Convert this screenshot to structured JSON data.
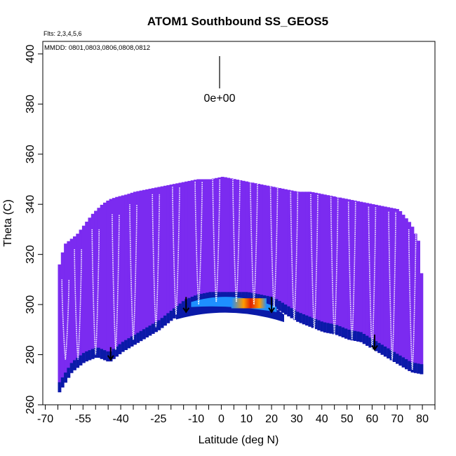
{
  "chart_data": {
    "type": "heatmap",
    "title": "ATOM1 Southbound SS_GEOS5",
    "annotations": {
      "flights": "Flts: 2,3,4,5,6",
      "dates": "MMDD: 0801,0803,0806,0808,0812",
      "legend_value": "0e+00"
    },
    "xlabel": "Latitude (deg N)",
    "ylabel": "Theta (C)",
    "xlim": [
      -71,
      85
    ],
    "ylim": [
      260,
      405
    ],
    "x_ticks_labeled": [
      -70,
      -55,
      -40,
      -25,
      -10,
      0,
      10,
      20,
      30,
      40,
      50,
      60,
      70,
      80
    ],
    "x_ticks_minor": [
      -65,
      -60,
      -50,
      -45,
      -35,
      -30,
      -20,
      -15,
      -5,
      5,
      15,
      25,
      35,
      45,
      55,
      65,
      75,
      85
    ],
    "y_ticks": [
      260,
      280,
      300,
      320,
      340,
      360,
      380,
      400
    ],
    "field_upper_boundary": [
      [
        -65,
        316
      ],
      [
        -63,
        324
      ],
      [
        -58,
        328
      ],
      [
        -55,
        332
      ],
      [
        -52,
        336
      ],
      [
        -48,
        340
      ],
      [
        -45,
        342
      ],
      [
        -42,
        343
      ],
      [
        -38,
        344
      ],
      [
        -35,
        345
      ],
      [
        -30,
        346
      ],
      [
        -25,
        347
      ],
      [
        -20,
        348
      ],
      [
        -15,
        349
      ],
      [
        -10,
        350
      ],
      [
        -5,
        350
      ],
      [
        0,
        351
      ],
      [
        5,
        350
      ],
      [
        10,
        349
      ],
      [
        15,
        348
      ],
      [
        20,
        347
      ],
      [
        25,
        346
      ],
      [
        30,
        345
      ],
      [
        35,
        345
      ],
      [
        40,
        344
      ],
      [
        45,
        343
      ],
      [
        50,
        342
      ],
      [
        55,
        341
      ],
      [
        60,
        340
      ],
      [
        65,
        339
      ],
      [
        70,
        338
      ],
      [
        75,
        332
      ],
      [
        78,
        325
      ],
      [
        80,
        300
      ]
    ],
    "field_lower_boundary": [
      [
        -65,
        265
      ],
      [
        -60,
        273
      ],
      [
        -55,
        277
      ],
      [
        -50,
        279
      ],
      [
        -45,
        277
      ],
      [
        -40,
        281
      ],
      [
        -35,
        284
      ],
      [
        -30,
        287
      ],
      [
        -25,
        290
      ],
      [
        -20,
        294
      ],
      [
        -15,
        298
      ],
      [
        -10,
        300
      ],
      [
        -5,
        301
      ],
      [
        0,
        301
      ],
      [
        5,
        301
      ],
      [
        10,
        301
      ],
      [
        15,
        300
      ],
      [
        20,
        299
      ],
      [
        25,
        296
      ],
      [
        30,
        293
      ],
      [
        35,
        291
      ],
      [
        40,
        289
      ],
      [
        45,
        288
      ],
      [
        50,
        286
      ],
      [
        55,
        285
      ],
      [
        60,
        282
      ],
      [
        65,
        279
      ],
      [
        70,
        276
      ],
      [
        75,
        273
      ],
      [
        80,
        272
      ]
    ],
    "colors": {
      "background_field": "#7b2bf0",
      "low_theta_band": "#0a1aa8",
      "mid_band": "#1e90ff",
      "peak_hot": "#e02000",
      "peak_warm": "#ff9a00",
      "flight_track": "#ffffff"
    },
    "flight_profiles": [
      {
        "lat": -62,
        "top": 310,
        "bottom": 278
      },
      {
        "lat": -57,
        "top": 322,
        "bottom": 278
      },
      {
        "lat": -50,
        "top": 330,
        "bottom": 280
      },
      {
        "lat": -42,
        "top": 336,
        "bottom": 282
      },
      {
        "lat": -35,
        "top": 340,
        "bottom": 286
      },
      {
        "lat": -26,
        "top": 344,
        "bottom": 291
      },
      {
        "lat": -18,
        "top": 347,
        "bottom": 296
      },
      {
        "lat": -9,
        "top": 349,
        "bottom": 300
      },
      {
        "lat": -2,
        "top": 350,
        "bottom": 301
      },
      {
        "lat": 6,
        "top": 350,
        "bottom": 301
      },
      {
        "lat": 13,
        "top": 349,
        "bottom": 300
      },
      {
        "lat": 21,
        "top": 347,
        "bottom": 299
      },
      {
        "lat": 29,
        "top": 345,
        "bottom": 294
      },
      {
        "lat": 37,
        "top": 344,
        "bottom": 290
      },
      {
        "lat": 45,
        "top": 343,
        "bottom": 288
      },
      {
        "lat": 52,
        "top": 341,
        "bottom": 286
      },
      {
        "lat": 60,
        "top": 339,
        "bottom": 282
      },
      {
        "lat": 68,
        "top": 337,
        "bottom": 278
      },
      {
        "lat": 76,
        "top": 330,
        "bottom": 274
      }
    ],
    "arrows": [
      {
        "lat": -44,
        "theta_from": 283,
        "theta_to": 278
      },
      {
        "lat": -14,
        "theta_from": 303,
        "theta_to": 297
      },
      {
        "lat": 20,
        "theta_from": 303,
        "theta_to": 297
      },
      {
        "lat": 61,
        "theta_from": 288,
        "theta_to": 282
      }
    ]
  }
}
